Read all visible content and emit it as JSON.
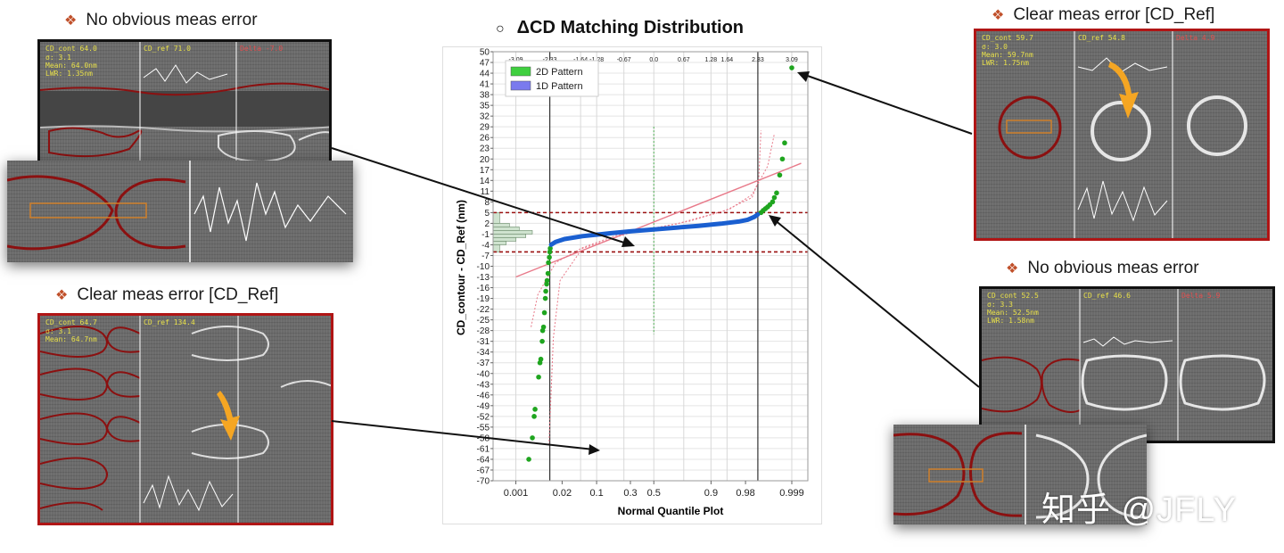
{
  "captions": {
    "top_left": "No obvious meas error",
    "mid_left": "Clear meas error [CD_Ref]",
    "top_right": "Clear meas error [CD_Ref]",
    "mid_right": "No obvious meas error"
  },
  "bullet_glyph": "❖",
  "title_marker": "○",
  "sem_panels": {
    "top_left": {
      "cd_cont": "CD_cont 64.0",
      "cd_ref": "CD_ref 71.0",
      "delta": "Delta -7.0",
      "line2": "σ: 3.1",
      "line3": "Mean: 64.0nm",
      "line4": "LWR: 1.35nm"
    },
    "mid_left": {
      "cd_cont": "CD_cont 64.7",
      "cd_ref": "CD_ref 134.4",
      "delta": "",
      "line2": "σ: 3.1",
      "line3": "Mean: 64.7nm",
      "line4": ""
    },
    "top_right": {
      "cd_cont": "CD_cont 59.7",
      "cd_ref": "CD_ref 54.8",
      "delta": "Delta 4.9",
      "line2": "σ: 3.0",
      "line3": "Mean: 59.7nm",
      "line4": "LWR: 1.75nm"
    },
    "mid_right": {
      "cd_cont": "CD_cont 52.5",
      "cd_ref": "CD_ref 46.6",
      "delta": "Delta 5.9",
      "line2": "σ: 3.3",
      "line3": "Mean: 52.5nm",
      "line4": "LWR: 1.58nm"
    }
  },
  "watermark": "知乎 @JFLY",
  "colors": {
    "green_points": "#1fa51f",
    "blue_points": "#1a5fd0",
    "red_dash": "#9b1010",
    "fit_line": "#e87a8a",
    "panel_red": "#b01515",
    "arrow_orange": "#f5a623"
  },
  "chart_data": {
    "type": "scatter",
    "title": "ΔCD Matching Distribution",
    "xlabel": "Normal Quantile Plot",
    "ylabel": "CD_contour - CD_Ref (nm)",
    "ylim": [
      -70,
      50
    ],
    "y_ticks": [
      50,
      47,
      44,
      41,
      38,
      35,
      32,
      29,
      26,
      23,
      20,
      17,
      14,
      11,
      8,
      5,
      2,
      -1,
      -4,
      -7,
      -10,
      -13,
      -16,
      -19,
      -22,
      -25,
      -28,
      -31,
      -34,
      -37,
      -40,
      -43,
      -46,
      -49,
      -52,
      -55,
      -58,
      -61,
      -64,
      -67,
      -70
    ],
    "y_tick_labels": [
      "50",
      "47",
      "44",
      "41",
      "38",
      "35",
      "32",
      "29",
      "26",
      "23",
      "20",
      "17",
      "14",
      "11",
      "8",
      "5",
      "2",
      "-1",
      "-4",
      "-7",
      "-10",
      "-13",
      "-16",
      "-19",
      "-22",
      "-25",
      "-28",
      "-31",
      "-34",
      "-37",
      "-40",
      "-43",
      "-46",
      "-49",
      "-52",
      "-55",
      "-58",
      "-61",
      "-64",
      "-67",
      "-70"
    ],
    "x_ticks_prob": [
      {
        "p": 0.001,
        "label": "0.001"
      },
      {
        "p": 0.02,
        "label": "0.02"
      },
      {
        "p": 0.1,
        "label": "0.1"
      },
      {
        "p": 0.3,
        "label": "0.3"
      },
      {
        "p": 0.5,
        "label": "0.5"
      },
      {
        "p": 0.9,
        "label": "0.9"
      },
      {
        "p": 0.98,
        "label": "0.98"
      },
      {
        "p": 0.999,
        "label": "0.999"
      }
    ],
    "x_ticks_z": [
      {
        "z": -3.09,
        "label": "-3.09"
      },
      {
        "z": -2.33,
        "label": "-2.33"
      },
      {
        "z": -1.64,
        "label": "-1.64"
      },
      {
        "z": -1.28,
        "label": "-1.28"
      },
      {
        "z": -0.67,
        "label": "-0.67"
      },
      {
        "z": 0.0,
        "label": "0.0"
      },
      {
        "z": 0.67,
        "label": "0.67"
      },
      {
        "z": 1.28,
        "label": "1.28"
      },
      {
        "z": 1.64,
        "label": "1.64"
      },
      {
        "z": 2.33,
        "label": "2.33"
      },
      {
        "z": 3.09,
        "label": "3.09"
      }
    ],
    "reference_lines_y": [
      5,
      -6
    ],
    "reference_lines_z": [
      -2.33,
      2.33
    ],
    "legend": {
      "position": "top-left",
      "entries": [
        {
          "name": "2D Pattern",
          "color": "#3fcf3f"
        },
        {
          "name": "1D Pattern",
          "color": "#7a7aee"
        }
      ]
    },
    "grid": true,
    "series": [
      {
        "name": "2D Pattern",
        "color": "#1fa51f",
        "points": [
          [
            -2.8,
            -64
          ],
          [
            -2.72,
            -58
          ],
          [
            -2.68,
            -52
          ],
          [
            -2.66,
            -50
          ],
          [
            -2.58,
            -41
          ],
          [
            -2.55,
            -37
          ],
          [
            -2.53,
            -36
          ],
          [
            -2.5,
            -31
          ],
          [
            -2.49,
            -28
          ],
          [
            -2.47,
            -27
          ],
          [
            -2.45,
            -23
          ],
          [
            -2.43,
            -19
          ],
          [
            -2.42,
            -17
          ],
          [
            -2.4,
            -15
          ],
          [
            -2.39,
            -14
          ],
          [
            -2.37,
            -12
          ],
          [
            -2.36,
            -9
          ],
          [
            -2.34,
            -7.5
          ],
          [
            -2.33,
            -6
          ],
          [
            -2.32,
            -5
          ],
          [
            2.4,
            5
          ],
          [
            2.45,
            5.6
          ],
          [
            2.5,
            6.1
          ],
          [
            2.55,
            6.6
          ],
          [
            2.6,
            7.2
          ],
          [
            2.66,
            8
          ],
          [
            2.7,
            9.2
          ],
          [
            2.75,
            10.5
          ],
          [
            2.82,
            15.5
          ],
          [
            2.88,
            20
          ],
          [
            2.93,
            24.5
          ],
          [
            3.09,
            45.5
          ]
        ]
      },
      {
        "name": "1D Pattern",
        "color": "#1a5fd0",
        "curve": [
          [
            -2.3,
            -4
          ],
          [
            -2.2,
            -3.2
          ],
          [
            -2.0,
            -2.4
          ],
          [
            -1.6,
            -1.6
          ],
          [
            -1.0,
            -0.8
          ],
          [
            -0.5,
            -0.2
          ],
          [
            0.0,
            0.3
          ],
          [
            0.5,
            0.8
          ],
          [
            1.0,
            1.3
          ],
          [
            1.5,
            1.9
          ],
          [
            1.9,
            2.5
          ],
          [
            2.1,
            3.0
          ],
          [
            2.25,
            3.8
          ],
          [
            2.33,
            4.5
          ]
        ]
      }
    ],
    "fit_line": {
      "z0": -3.09,
      "y0": -13,
      "z1": 3.3,
      "y1": 18.8
    },
    "confidence_curves": [
      [
        [
          -2.35,
          -60
        ],
        [
          -2.25,
          -30
        ],
        [
          -2.1,
          -14
        ],
        [
          -1.6,
          -5
        ],
        [
          -0.5,
          -0.5
        ],
        [
          0.8,
          2.6
        ],
        [
          1.7,
          6
        ],
        [
          2.2,
          10
        ],
        [
          2.55,
          18
        ],
        [
          2.7,
          27
        ]
      ],
      [
        [
          -2.75,
          -27
        ],
        [
          -2.6,
          -18
        ],
        [
          -2.2,
          -9
        ],
        [
          -1.6,
          -4.8
        ],
        [
          -0.8,
          -1.2
        ],
        [
          0.5,
          1.8
        ],
        [
          1.6,
          5.6
        ],
        [
          2.2,
          9.2
        ],
        [
          2.35,
          14
        ],
        [
          2.4,
          28
        ]
      ]
    ],
    "median_marker_z": 0.0,
    "median_marker_yrange": [
      -29,
      29
    ],
    "histogram": {
      "bins": [
        {
          "y_from": 5,
          "y_to": 2,
          "count": 2
        },
        {
          "y_from": 2,
          "y_to": 1,
          "count": 5
        },
        {
          "y_from": 1,
          "y_to": 0,
          "count": 8
        },
        {
          "y_from": 0,
          "y_to": -1,
          "count": 12
        },
        {
          "y_from": -1,
          "y_to": -2,
          "count": 10
        },
        {
          "y_from": -2,
          "y_to": -3,
          "count": 7
        },
        {
          "y_from": -3,
          "y_to": -4,
          "count": 4
        },
        {
          "y_from": -4,
          "y_to": -6,
          "count": 2
        }
      ]
    }
  }
}
